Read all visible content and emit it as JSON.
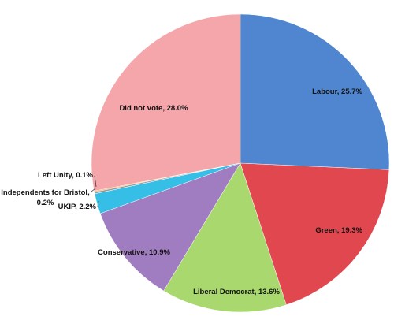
{
  "chart_data": {
    "type": "pie",
    "categories": [
      "Labour",
      "Green",
      "Liberal Democrat",
      "Conservative",
      "UKIP",
      "Independents for Bristol",
      "Left Unity",
      "Did not vote"
    ],
    "values": [
      25.7,
      19.3,
      13.6,
      10.9,
      2.2,
      0.2,
      0.1,
      28.0
    ],
    "value_labels": [
      "Labour, 25.7%",
      "Green, 19.3%",
      "Liberal Democrat, 13.6%",
      "Conservative, 10.9%",
      "UKIP, 2.2%",
      "Independents for Bristol,\n0.2%",
      "Left Unity, 0.1%",
      "Did not vote, 28.0%"
    ],
    "colors": [
      "#4f86cf",
      "#e0474f",
      "#a8d86e",
      "#a07cc0",
      "#35bfe6",
      "#9a9a9a",
      "#f0a030",
      "#f5a6aa"
    ]
  }
}
